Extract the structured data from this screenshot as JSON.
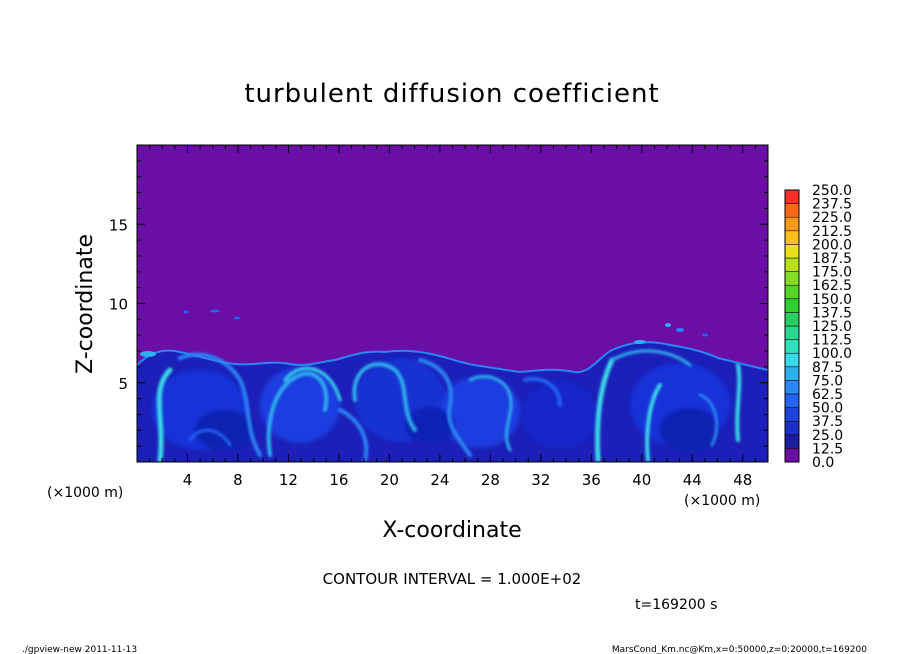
{
  "chart_data": {
    "type": "heatmap",
    "title": "turbulent diffusion coefficient",
    "xlabel": "X-coordinate",
    "ylabel": "Z-coordinate",
    "x_unit": "(×1000 m)",
    "y_unit": "(×1000 m)",
    "xlim": [
      0,
      50
    ],
    "ylim": [
      0,
      20
    ],
    "x_ticks": [
      4,
      8,
      12,
      16,
      20,
      24,
      28,
      32,
      36,
      40,
      44,
      48
    ],
    "y_ticks": [
      5,
      10,
      15
    ],
    "colorbar": {
      "levels": [
        "0.0",
        "12.5",
        "25.0",
        "37.5",
        "50.0",
        "62.5",
        "75.0",
        "87.5",
        "100.0",
        "112.5",
        "125.0",
        "137.5",
        "150.0",
        "162.5",
        "175.0",
        "187.5",
        "200.0",
        "212.5",
        "225.0",
        "237.5",
        "250.0"
      ],
      "colors": [
        "#6a0ea6",
        "#1c1ca0",
        "#1e2ec8",
        "#1f44e0",
        "#2364f0",
        "#2a86f4",
        "#2fb0ee",
        "#3ad8e8",
        "#2ee0b8",
        "#2ad890",
        "#28d060",
        "#30d030",
        "#58d428",
        "#88dc28",
        "#b8e020",
        "#e8e018",
        "#f8c018",
        "#f89818",
        "#f86818",
        "#f83028",
        "#f88080"
      ]
    },
    "background_value": 0.0,
    "turbulent_layer_top_approx": 6.5,
    "contour_interval": "CONTOUR INTERVAL = 1.000E+02",
    "time_label": "t=169200 s",
    "footer_left": "./gpview-new  2011-11-13",
    "footer_right": "MarsCond_Km.nc@Km,x=0:50000,z=0:20000,t=169200"
  }
}
